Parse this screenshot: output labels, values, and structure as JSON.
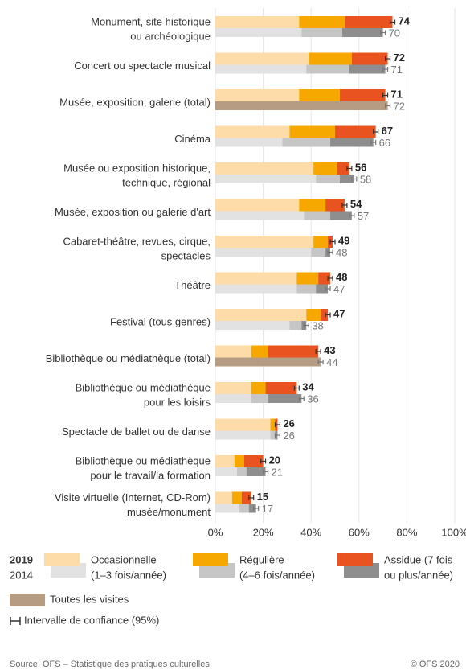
{
  "chart_data": {
    "type": "bar",
    "orientation": "horizontal",
    "stacked": true,
    "categories": [
      [
        "Monument, site historique",
        "ou archéologique"
      ],
      [
        "Concert ou spectacle musical"
      ],
      [
        "Musée, exposition, galerie (total)"
      ],
      [
        "Cinéma"
      ],
      [
        "Musée ou exposition historique,",
        "technique, régional"
      ],
      [
        "Musée, exposition ou galerie d'art"
      ],
      [
        "Cabaret-théâtre, revues, cirque,",
        "spectacles"
      ],
      [
        "Théâtre"
      ],
      [
        "Festival (tous genres)"
      ],
      [
        "Bibliothèque ou médiathèque (total)"
      ],
      [
        "Bibliothèque ou médiathèque",
        "pour les loisirs"
      ],
      [
        "Spectacle de ballet ou de danse"
      ],
      [
        "Bibliothèque ou médiathèque",
        "pour le travail/la formation"
      ],
      [
        "Visite virtuelle (Internet, CD-Rom)",
        "musée/monument"
      ]
    ],
    "years": [
      "2019",
      "2014"
    ],
    "series": [
      {
        "name": [
          "Occasionnelle",
          "(1–3 fois/année)"
        ],
        "colors": [
          "#fddcaa",
          "#e2e2e2"
        ],
        "values": [
          [
            35,
            39,
            35,
            31,
            41,
            35,
            41,
            34,
            38,
            15,
            15,
            23,
            8,
            7
          ],
          [
            36,
            38,
            null,
            28,
            42,
            37,
            40,
            34,
            31,
            null,
            15,
            23,
            9,
            10
          ]
        ]
      },
      {
        "name": [
          "Régulière",
          "(4–6 fois/année)"
        ],
        "colors": [
          "#f6a800",
          "#c6c6c6"
        ],
        "values": [
          [
            19,
            18,
            17,
            19,
            10,
            11,
            6,
            9,
            6,
            7,
            6,
            2,
            4,
            4
          ],
          [
            17,
            18,
            null,
            20,
            10,
            11,
            6,
            8,
            5,
            null,
            7,
            2,
            4,
            4
          ]
        ]
      },
      {
        "name": [
          "Assidue (7 fois",
          "ou plus/année)"
        ],
        "colors": [
          "#e8531f",
          "#8e8e8e"
        ],
        "values": [
          [
            20,
            15,
            19,
            17,
            5,
            8,
            2,
            5,
            3,
            21,
            13,
            1,
            8,
            4
          ],
          [
            17,
            15,
            null,
            18,
            6,
            9,
            2,
            5,
            2,
            null,
            14,
            1,
            8,
            3
          ]
        ]
      }
    ],
    "total_series": {
      "name": "Toutes les visites",
      "color": "#b69c82",
      "values": [
        null,
        null,
        72,
        null,
        null,
        null,
        null,
        null,
        null,
        44,
        null,
        null,
        null,
        null
      ]
    },
    "totals": [
      [
        74,
        72,
        71,
        67,
        56,
        54,
        49,
        48,
        47,
        43,
        34,
        26,
        20,
        15
      ],
      [
        70,
        71,
        null,
        66,
        58,
        57,
        48,
        47,
        38,
        null,
        36,
        26,
        21,
        17
      ]
    ],
    "errors": [
      [
        1,
        1,
        1,
        1,
        1,
        1,
        1,
        1,
        1,
        1,
        1,
        1,
        1,
        1
      ],
      [
        1,
        1,
        1,
        1,
        1,
        1,
        1,
        1,
        1,
        1,
        1,
        1,
        1,
        1
      ]
    ],
    "ci_label": "Intervalle de confiance (95%)",
    "xlim": [
      0,
      100
    ],
    "xticks": [
      {
        "value": 0,
        "label": "0%"
      },
      {
        "value": 20,
        "label": "20%"
      },
      {
        "value": 40,
        "label": "40%"
      },
      {
        "value": 60,
        "label": "60%"
      },
      {
        "value": 80,
        "label": "80%"
      },
      {
        "value": 100,
        "label": "100%"
      }
    ],
    "grid": true,
    "source": "Source: OFS – Statistique des pratiques culturelles",
    "copyright": "© OFS 2020"
  }
}
